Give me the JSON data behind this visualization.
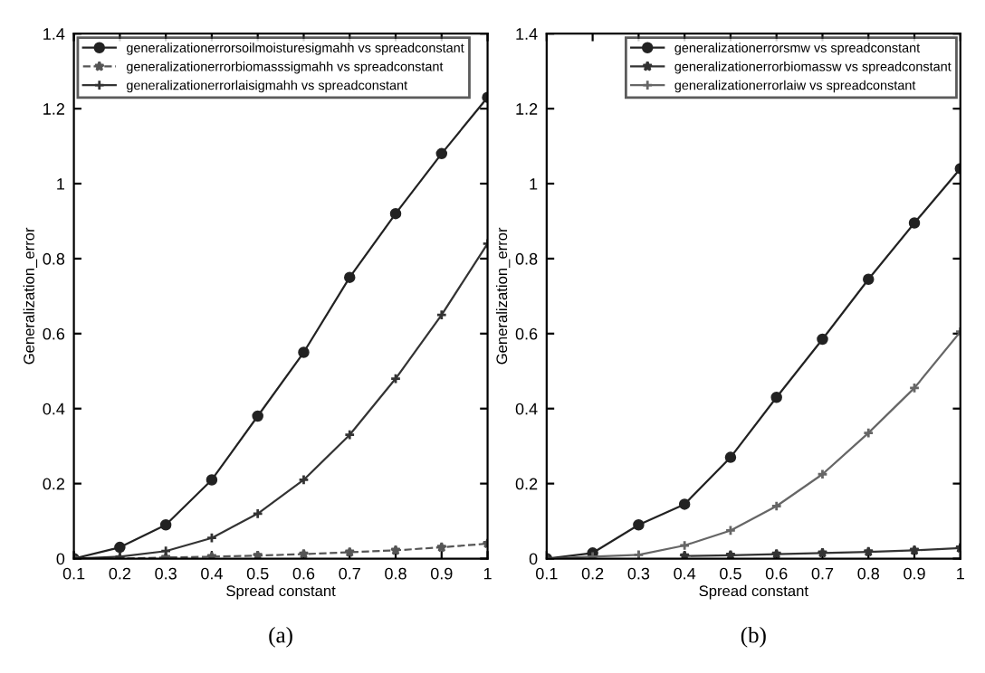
{
  "chart_data": [
    {
      "type": "line",
      "xlabel": "Spread constant",
      "ylabel": "Generalization_error",
      "annotations": [
        "(a)"
      ],
      "x": [
        0.1,
        0.2,
        0.3,
        0.4,
        0.5,
        0.6,
        0.7,
        0.8,
        0.9,
        1
      ],
      "series": [
        {
          "name": "generalizationerrorsoilmoisturesigmahh vs spreadconstant",
          "color": "#222222",
          "marker": "circle",
          "line_style": "solid",
          "values": [
            0,
            0.03,
            0.09,
            0.21,
            0.38,
            0.55,
            0.75,
            0.92,
            1.08,
            1.23
          ]
        },
        {
          "name": "generalizationerrorbiomasssigmahh vs spreadconstant",
          "color": "#555555",
          "marker": "star",
          "line_style": "dashed",
          "values": [
            0,
            0,
            0.003,
            0.005,
            0.008,
            0.012,
            0.017,
            0.022,
            0.03,
            0.04
          ]
        },
        {
          "name": "generalizationerrorlaisigmahh vs spreadconstant",
          "color": "#333333",
          "marker": "cross",
          "line_style": "solid",
          "values": [
            0,
            0.005,
            0.02,
            0.055,
            0.12,
            0.21,
            0.33,
            0.48,
            0.65,
            0.84
          ]
        }
      ],
      "xlim": [
        0.1,
        1
      ],
      "ylim": [
        0,
        1.4
      ],
      "xticks": [
        0.1,
        0.2,
        0.3,
        0.4,
        0.5,
        0.6,
        0.7,
        0.8,
        0.9,
        1
      ],
      "yticks": [
        0,
        0.2,
        0.4,
        0.6,
        0.8,
        1,
        1.2,
        1.4
      ],
      "grid": false,
      "legend": "top left"
    },
    {
      "type": "line",
      "xlabel": "Spread constant",
      "ylabel": "Generalization_error",
      "annotations": [
        "(b)"
      ],
      "x": [
        0.1,
        0.2,
        0.3,
        0.4,
        0.5,
        0.6,
        0.7,
        0.8,
        0.9,
        1
      ],
      "series": [
        {
          "name": "generalizationerrorsmw vs spreadconstant",
          "color": "#222222",
          "marker": "circle",
          "line_style": "solid",
          "values": [
            0,
            0.015,
            0.09,
            0.145,
            0.27,
            0.43,
            0.585,
            0.745,
            0.895,
            1.04
          ]
        },
        {
          "name": "generalizationerrorbiomassw vs spreadconstant",
          "color": "#333333",
          "marker": "star",
          "line_style": "solid",
          "values": [
            0,
            null,
            null,
            0.007,
            0.009,
            0.012,
            0.015,
            0.018,
            0.022,
            0.028
          ]
        },
        {
          "name": "generalizationerrorlaiw vs spreadconstant",
          "color": "#666666",
          "marker": "cross",
          "line_style": "solid",
          "values": [
            0,
            0.005,
            0.01,
            0.035,
            0.075,
            0.14,
            0.225,
            0.335,
            0.455,
            0.605
          ]
        }
      ],
      "xlim": [
        0.1,
        1
      ],
      "ylim": [
        0,
        1.4
      ],
      "xticks": [
        0.1,
        0.2,
        0.3,
        0.4,
        0.5,
        0.6,
        0.7,
        0.8,
        0.9,
        1
      ],
      "yticks": [
        0,
        0.2,
        0.4,
        0.6,
        0.8,
        1,
        1.2,
        1.4
      ],
      "grid": false,
      "legend": "top right"
    }
  ]
}
